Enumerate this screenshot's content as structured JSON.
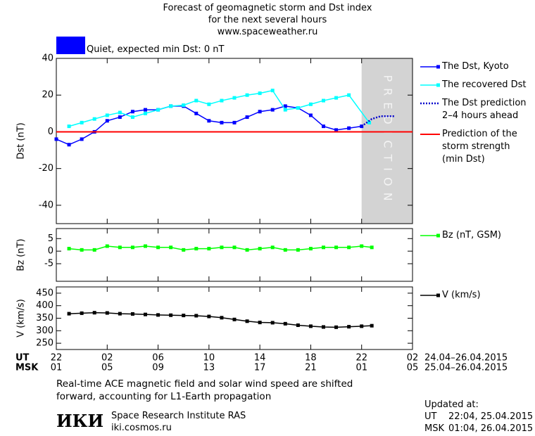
{
  "header": {
    "title": [
      "Forecast of geomagnetic storm and Dst index",
      "for the next several hours",
      "www.spaceweather.ru"
    ],
    "status": {
      "color": "#0000ff",
      "text": "Quiet, expected min Dst: 0 nT"
    }
  },
  "chart_data": [
    {
      "type": "line",
      "ylabel": "Dst (nT)",
      "xlim": [
        0,
        28
      ],
      "ylim": [
        -50,
        40
      ],
      "yticks": [
        -40,
        -20,
        0,
        20,
        40
      ],
      "shade": {
        "from": 24,
        "to": 28,
        "label": "PREDICTION",
        "color": "#d3d3d3"
      },
      "series": [
        {
          "name": "The Dst, Kyoto",
          "color": "#0000ff",
          "marker": "square",
          "x": [
            0,
            1,
            2,
            3,
            4,
            5,
            6,
            7,
            8,
            9,
            10,
            11,
            12,
            13,
            14,
            15,
            16,
            17,
            18,
            19,
            20,
            21,
            22,
            23,
            24
          ],
          "values": [
            -4,
            -7,
            -4,
            0,
            6,
            8,
            11,
            12,
            12,
            14,
            14,
            10,
            6,
            5,
            5,
            8,
            11,
            12,
            14,
            13,
            9,
            3,
            1,
            2,
            3
          ]
        },
        {
          "name": "The recovered Dst",
          "color": "#00ffff",
          "marker": "square",
          "x": [
            1,
            2,
            3,
            4,
            5,
            6,
            7,
            8,
            9,
            10,
            11,
            12,
            13,
            14,
            15,
            16,
            17,
            18,
            19,
            20,
            21,
            22,
            23,
            24.6
          ],
          "values": [
            3,
            5,
            7,
            9,
            10.5,
            8,
            10,
            12,
            14,
            14.5,
            17,
            15,
            17,
            18.5,
            20,
            21,
            22.5,
            12,
            13,
            15,
            17,
            18.5,
            20,
            5
          ]
        },
        {
          "name": "The Dst prediction\n2–4 hours ahead",
          "color": "#0000cc",
          "dash": true,
          "x": [
            24,
            24.8,
            25.5,
            26.6
          ],
          "values": [
            3,
            7,
            8.5,
            8.5
          ]
        },
        {
          "name": "Prediction of the\nstorm strength\n(min Dst)",
          "color": "#ff0000",
          "type": "hline",
          "values": [
            0
          ]
        }
      ]
    },
    {
      "type": "line",
      "ylabel": "Bz (nT)",
      "xlim": [
        0,
        28
      ],
      "ylim": [
        -12,
        9
      ],
      "yticks": [
        -5,
        0,
        5
      ],
      "series": [
        {
          "name": "Bz (nT, GSM)",
          "color": "#00ff00",
          "marker": "square",
          "x": [
            1,
            2,
            3,
            4,
            5,
            6,
            7,
            8,
            9,
            10,
            11,
            12,
            13,
            14,
            15,
            16,
            17,
            18,
            19,
            20,
            21,
            22,
            23,
            24,
            24.8
          ],
          "values": [
            1,
            0.5,
            0.5,
            2,
            1.5,
            1.5,
            2,
            1.5,
            1.5,
            0.5,
            1,
            1,
            1.5,
            1.5,
            0.5,
            1,
            1.5,
            0.5,
            0.5,
            1,
            1.5,
            1.5,
            1.5,
            2,
            1.5
          ]
        }
      ]
    },
    {
      "type": "line",
      "ylabel": "V (km/s)",
      "xlim": [
        0,
        28
      ],
      "ylim": [
        225,
        475
      ],
      "yticks": [
        250,
        300,
        350,
        400,
        450
      ],
      "series": [
        {
          "name": "V (km/s)",
          "color": "#000000",
          "marker": "square",
          "x": [
            1,
            2,
            3,
            4,
            5,
            6,
            7,
            8,
            9,
            10,
            11,
            12,
            13,
            14,
            15,
            16,
            17,
            18,
            19,
            20,
            21,
            22,
            23,
            24,
            24.8
          ],
          "values": [
            368,
            370,
            372,
            371,
            368,
            367,
            365,
            363,
            362,
            361,
            360,
            357,
            352,
            345,
            338,
            333,
            332,
            328,
            322,
            318,
            315,
            314,
            316,
            318,
            320
          ]
        }
      ],
      "xrow_labels": [
        "UT",
        "MSK"
      ],
      "xticks": [
        {
          "value": 0,
          "label": "22"
        },
        {
          "value": 4,
          "label": "02"
        },
        {
          "value": 8,
          "label": "06"
        },
        {
          "value": 12,
          "label": "10"
        },
        {
          "value": 16,
          "label": "14"
        },
        {
          "value": 20,
          "label": "18"
        },
        {
          "value": 24,
          "label": "22"
        },
        {
          "value": 28,
          "label": "02"
        }
      ],
      "xticks_msk": [
        {
          "value": 0,
          "label": "01"
        },
        {
          "value": 4,
          "label": "05"
        },
        {
          "value": 8,
          "label": "09"
        },
        {
          "value": 12,
          "label": "13"
        },
        {
          "value": 16,
          "label": "17"
        },
        {
          "value": 20,
          "label": "21"
        },
        {
          "value": 24,
          "label": "01"
        },
        {
          "value": 28,
          "label": "05"
        }
      ],
      "date_ranges": [
        "24.04–26.04.2015",
        "25.04–26.04.2015"
      ]
    }
  ],
  "footer": {
    "note": "Real-time ACE magnetic field and solar wind speed are shifted\nforward, accounting for L1-Earth propagation",
    "logo": "ИКИ",
    "institute": "Space Research Institute RAS",
    "site": "iki.cosmos.ru",
    "updated": {
      "label": "Updated at:",
      "rows": [
        [
          "UT",
          "22:04, 25.04.2015"
        ],
        [
          "MSK",
          "01:04, 26.04.2015"
        ]
      ]
    }
  }
}
